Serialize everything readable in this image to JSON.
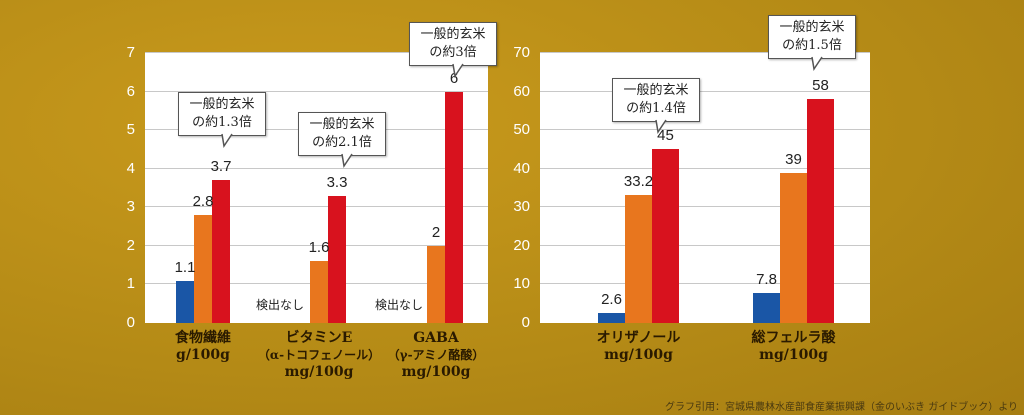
{
  "colors": {
    "general": "#1a56a6",
    "variety": "#e8761e",
    "kinno_ibuki": "#d8121e"
  },
  "chart_data": [
    {
      "type": "bar",
      "ylim": [
        0,
        7
      ],
      "yticks": [
        0,
        1,
        2,
        3,
        4,
        5,
        6,
        7
      ],
      "categories": [
        {
          "lines": [
            "食物繊維",
            "g/100g"
          ]
        },
        {
          "lines": [
            "ビタミンE",
            "（α-トコフェノール）",
            "mg/100g"
          ]
        },
        {
          "lines": [
            "GABA",
            "（γ-アミノ酪酸）",
            "mg/100g"
          ]
        }
      ],
      "series": [
        {
          "name": "blue",
          "values": [
            1.1,
            null,
            null
          ],
          "labels": [
            "1.1",
            "検出なし",
            "検出なし"
          ]
        },
        {
          "name": "orange",
          "values": [
            2.8,
            1.6,
            2
          ],
          "labels": [
            "2.8",
            "1.6",
            "2"
          ]
        },
        {
          "name": "red",
          "values": [
            3.7,
            3.3,
            6
          ],
          "labels": [
            "3.7",
            "3.3",
            "6"
          ]
        }
      ],
      "annotations": [
        {
          "lines": [
            "一般的玄米",
            "の約1.3倍"
          ]
        },
        {
          "lines": [
            "一般的玄米",
            "の約2.1倍"
          ]
        },
        {
          "lines": [
            "一般的玄米",
            "の約3倍"
          ]
        }
      ]
    },
    {
      "type": "bar",
      "ylim": [
        0,
        70
      ],
      "yticks": [
        0,
        10,
        20,
        30,
        40,
        50,
        60,
        70
      ],
      "categories": [
        {
          "lines": [
            "オリザノール",
            "mg/100g"
          ]
        },
        {
          "lines": [
            "総フェルラ酸",
            "mg/100g"
          ]
        }
      ],
      "series": [
        {
          "name": "blue",
          "values": [
            2.6,
            7.8
          ],
          "labels": [
            "2.6",
            "7.8"
          ]
        },
        {
          "name": "orange",
          "values": [
            33.2,
            39
          ],
          "labels": [
            "33.2",
            "39"
          ]
        },
        {
          "name": "red",
          "values": [
            45,
            58
          ],
          "labels": [
            "45",
            "58"
          ]
        }
      ],
      "annotations": [
        {
          "lines": [
            "一般的玄米",
            "の約1.4倍"
          ]
        },
        {
          "lines": [
            "一般的玄米",
            "の約1.5倍"
          ]
        }
      ]
    }
  ],
  "source": "グラフ引用：宮城県農林水産部食産業振興課（金のいぶき ガイドブック）より"
}
